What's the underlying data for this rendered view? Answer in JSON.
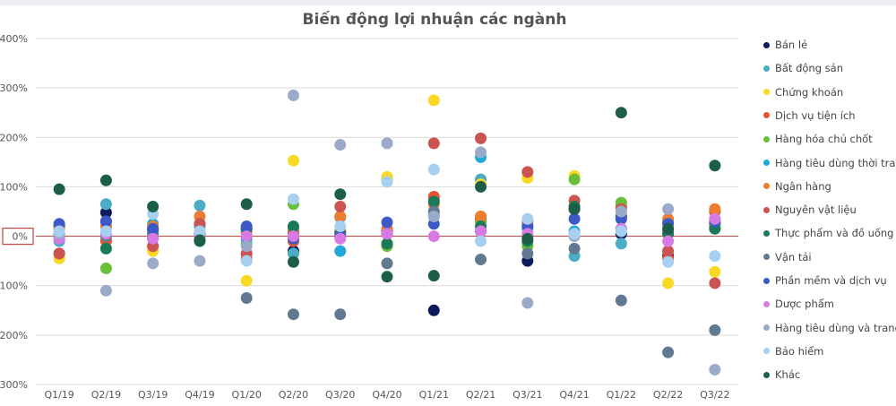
{
  "chart_data": {
    "type": "scatter",
    "title": "Biến động lợi nhuận các ngành",
    "xlabel": "",
    "ylabel": "",
    "categories": [
      "Q1/19",
      "Q2/19",
      "Q3/19",
      "Q4/19",
      "Q1/20",
      "Q2/20",
      "Q3/20",
      "Q4/20",
      "Q1/21",
      "Q2/21",
      "Q3/21",
      "Q4/21",
      "Q1/22",
      "Q2/22",
      "Q3/22"
    ],
    "y_ticks": [
      "400%",
      "300%",
      "200%",
      "100%",
      "0%",
      "-100%",
      "-200%",
      "-300%"
    ],
    "ylim": [
      -300,
      400
    ],
    "y_unit": "%",
    "grid": true,
    "highlighted_tick": "0%",
    "legend_position": "right",
    "series": [
      {
        "name": "Bán lẻ",
        "color": "#0d1a5c",
        "values": [
          20,
          48,
          12,
          25,
          15,
          -30,
          10,
          10,
          -150,
          35,
          -50,
          55,
          5,
          -40,
          25
        ]
      },
      {
        "name": "Bất động sản",
        "color": "#4bacc6",
        "values": [
          -10,
          65,
          15,
          62,
          10,
          -35,
          38,
          115,
          75,
          115,
          15,
          -40,
          -15,
          30,
          50
        ]
      },
      {
        "name": "Chứng khoán",
        "color": "#f9d923",
        "values": [
          -45,
          -5,
          -30,
          10,
          -90,
          153,
          10,
          120,
          275,
          105,
          118,
          122,
          60,
          -95,
          -72
        ]
      },
      {
        "name": "Dịch vụ tiện ích",
        "color": "#e8542d",
        "values": [
          -35,
          -10,
          -20,
          5,
          -45,
          -10,
          8,
          5,
          80,
          40,
          30,
          60,
          60,
          -45,
          50
        ]
      },
      {
        "name": "Hàng hóa chủ chốt",
        "color": "#6abf3a",
        "values": [
          0,
          -65,
          5,
          0,
          -15,
          65,
          0,
          -20,
          45,
          30,
          -20,
          115,
          68,
          5,
          20
        ]
      },
      {
        "name": "Hàng tiêu dùng thời trang",
        "color": "#22a9d9",
        "values": [
          -5,
          20,
          25,
          20,
          -5,
          15,
          -30,
          5,
          40,
          160,
          5,
          10,
          15,
          10,
          35
        ]
      },
      {
        "name": "Ngân hàng",
        "color": "#ec7d31",
        "values": [
          15,
          20,
          20,
          40,
          5,
          10,
          40,
          15,
          65,
          40,
          25,
          55,
          40,
          35,
          55
        ]
      },
      {
        "name": "Nguyên vật liệu",
        "color": "#c95451",
        "values": [
          -35,
          30,
          -20,
          25,
          -35,
          5,
          60,
          5,
          188,
          198,
          130,
          72,
          55,
          -30,
          -95
        ]
      },
      {
        "name": "Thực phẩm và đồ uống",
        "color": "#1a7a57",
        "values": [
          5,
          -25,
          -5,
          -10,
          15,
          20,
          5,
          -15,
          70,
          20,
          -10,
          60,
          40,
          5,
          15
        ]
      },
      {
        "name": "Vận tải",
        "color": "#617a91",
        "values": [
          5,
          0,
          5,
          5,
          -125,
          -158,
          -158,
          -55,
          50,
          -47,
          -35,
          -25,
          -130,
          -235,
          -190
        ]
      },
      {
        "name": "Phần mềm và dịch vụ",
        "color": "#3d58c7",
        "values": [
          25,
          30,
          15,
          0,
          20,
          -5,
          0,
          28,
          25,
          10,
          20,
          35,
          35,
          25,
          30
        ]
      },
      {
        "name": "Dược phẩm",
        "color": "#d87ae4",
        "values": [
          -5,
          5,
          -5,
          0,
          0,
          0,
          -5,
          5,
          0,
          10,
          5,
          5,
          15,
          -10,
          35
        ]
      },
      {
        "name": "Hàng tiêu dùng và trang trí",
        "color": "#9aaac8",
        "values": [
          5,
          -110,
          -55,
          -50,
          -20,
          285,
          185,
          188,
          40,
          170,
          -135,
          0,
          50,
          55,
          -270
        ]
      },
      {
        "name": "Bảo hiểm",
        "color": "#a6cff0",
        "values": [
          10,
          10,
          45,
          10,
          -50,
          75,
          20,
          110,
          135,
          -10,
          35,
          5,
          10,
          -52,
          -40
        ]
      },
      {
        "name": "Khác",
        "color": "#1c5e47",
        "values": [
          95,
          113,
          60,
          -8,
          65,
          -52,
          85,
          -82,
          -80,
          100,
          -5,
          55,
          250,
          15,
          143
        ]
      }
    ]
  }
}
